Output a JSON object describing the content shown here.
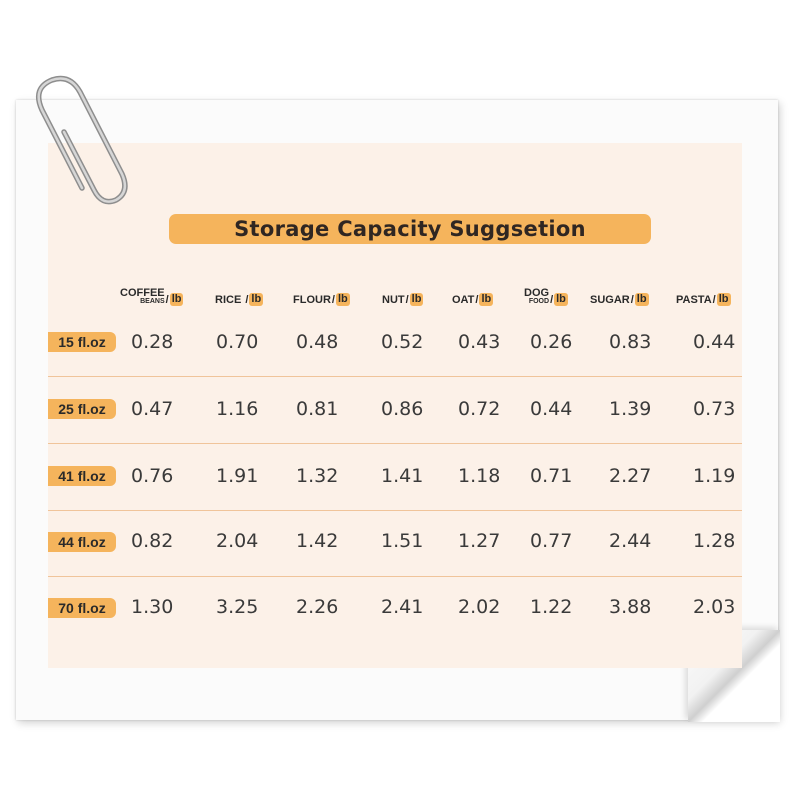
{
  "title": "Storage Capacity Suggsetion",
  "columns": [
    {
      "name": "COFFEE",
      "sub": "BEANS",
      "unit": "lb"
    },
    {
      "name": "RICE",
      "unit": "lb"
    },
    {
      "name": "FLOUR",
      "unit": "lb"
    },
    {
      "name": "NUT",
      "unit": "lb"
    },
    {
      "name": "OAT",
      "unit": "lb"
    },
    {
      "name": "DOG",
      "sub": "FOOD",
      "unit": "lb"
    },
    {
      "name": "SUGAR",
      "unit": "lb"
    },
    {
      "name": "PASTA",
      "unit": "lb"
    }
  ],
  "rows": [
    {
      "size": "15 fl.oz",
      "values": [
        "0.28",
        "0.70",
        "0.48",
        "0.52",
        "0.43",
        "0.26",
        "0.83",
        "0.44"
      ]
    },
    {
      "size": "25 fl.oz",
      "values": [
        "0.47",
        "1.16",
        "0.81",
        "0.86",
        "0.72",
        "0.44",
        "1.39",
        "0.73"
      ]
    },
    {
      "size": "41 fl.oz",
      "values": [
        "0.76",
        "1.91",
        "1.32",
        "1.41",
        "1.18",
        "0.71",
        "2.27",
        "1.19"
      ]
    },
    {
      "size": "44 fl.oz",
      "values": [
        "0.82",
        "2.04",
        "1.42",
        "1.51",
        "1.27",
        "0.77",
        "2.44",
        "1.28"
      ]
    },
    {
      "size": "70 fl.oz",
      "values": [
        "1.30",
        "3.25",
        "2.26",
        "2.41",
        "2.02",
        "1.22",
        "3.88",
        "2.03"
      ]
    }
  ],
  "colors": {
    "accent": "#f5b45c",
    "card": "#fcf1e8",
    "divider": "#f0c49a",
    "text": "#3a3a3a"
  },
  "icons": {
    "clip": "paperclip-icon",
    "curl": "page-curl"
  }
}
